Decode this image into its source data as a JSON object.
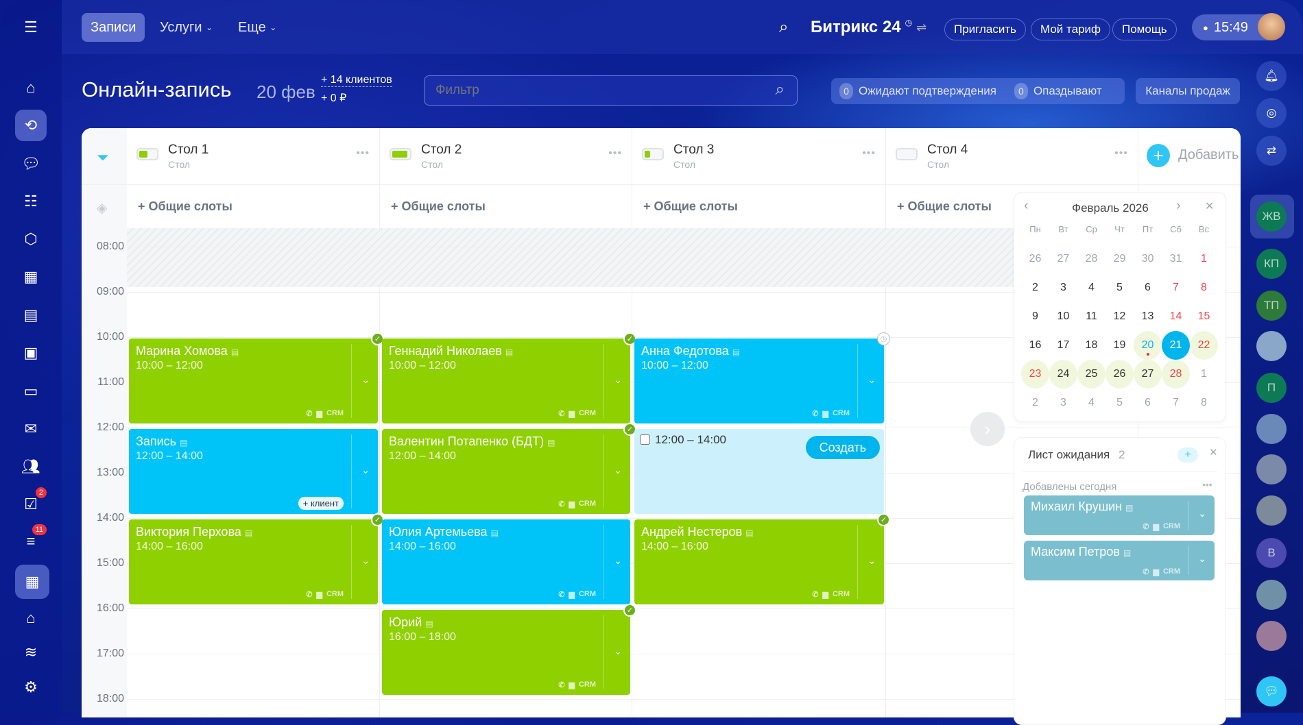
{
  "topbar": {
    "tabs": [
      "Записи",
      "Услуги",
      "Еще"
    ],
    "brand": "Битрикс 24",
    "invite": "Пригласить",
    "tariff": "Мой тариф",
    "help": "Помощь",
    "time": "15:49"
  },
  "header": {
    "title": "Онлайн-запись",
    "date": "20 фев",
    "clients": "+ 14 клиентов",
    "money": "+ 0 ₽",
    "filter_placeholder": "Фильтр",
    "pending_count": "0",
    "pending_label": "Ожидают подтверждения",
    "late_count": "0",
    "late_label": "Опаздывают",
    "channels": "Каналы продаж"
  },
  "left_sidebar": {
    "tasks_badge": "2",
    "funnel_badge": "11"
  },
  "columns": [
    {
      "name": "Стол 1",
      "type": "Стол",
      "battery": 0.5
    },
    {
      "name": "Стол 2",
      "type": "Стол",
      "battery": 0.9
    },
    {
      "name": "Стол 3",
      "type": "Стол",
      "battery": 0.35
    },
    {
      "name": "Стол 4",
      "type": "Стол",
      "battery": 0
    }
  ],
  "add_label": "Добавить",
  "shared_slots": "+ Общие слоты",
  "hours": [
    "08:00",
    "09:00",
    "10:00",
    "11:00",
    "12:00",
    "13:00",
    "14:00",
    "15:00",
    "16:00",
    "17:00",
    "18:00"
  ],
  "bookings": [
    {
      "col": 0,
      "name": "Марина Хомова",
      "time": "10:00 – 12:00",
      "start": 10,
      "end": 12,
      "color": "green",
      "status": "confirmed",
      "crm": "CRM"
    },
    {
      "col": 0,
      "name": "Запись",
      "time": "12:00 – 14:00",
      "start": 12,
      "end": 14,
      "color": "blue",
      "status": "none",
      "add_client": "+ клиент"
    },
    {
      "col": 0,
      "name": "Виктория Перхова",
      "time": "14:00 – 16:00",
      "start": 14,
      "end": 16,
      "color": "green",
      "status": "confirmed",
      "crm": "CRM"
    },
    {
      "col": 1,
      "name": "Геннадий Николаев",
      "time": "10:00 – 12:00",
      "start": 10,
      "end": 12,
      "color": "green",
      "status": "confirmed",
      "crm": "CRM"
    },
    {
      "col": 1,
      "name": "Валентин Потапенко (БДТ)",
      "time": "12:00 – 14:00",
      "start": 12,
      "end": 14,
      "color": "green",
      "status": "confirmed",
      "crm": "CRM"
    },
    {
      "col": 1,
      "name": "Юлия Артемьева",
      "time": "14:00 – 16:00",
      "start": 14,
      "end": 16,
      "color": "blue",
      "status": "none",
      "crm": "CRM"
    },
    {
      "col": 1,
      "name": "Юрий",
      "time": "16:00 – 18:00",
      "start": 16,
      "end": 18,
      "color": "green",
      "status": "confirmed",
      "crm": "CRM"
    },
    {
      "col": 2,
      "name": "Анна Федотова",
      "time": "10:00 – 12:00",
      "start": 10,
      "end": 12,
      "color": "blue",
      "status": "pending",
      "crm": "CRM"
    },
    {
      "col": 2,
      "name": "Андрей Нестеров",
      "time": "14:00 – 16:00",
      "start": 14,
      "end": 16,
      "color": "green",
      "status": "confirmed",
      "crm": "CRM"
    }
  ],
  "new_slot": {
    "col": 2,
    "start": 12,
    "end": 14,
    "time": "12:00 – 14:00",
    "create": "Создать"
  },
  "calendar": {
    "title": "Февраль 2026",
    "weekdays": [
      "Пн",
      "Вт",
      "Ср",
      "Чт",
      "Пт",
      "Сб",
      "Вс"
    ],
    "days": [
      [
        "26",
        "o"
      ],
      [
        "27",
        "o"
      ],
      [
        "28",
        "o"
      ],
      [
        "29",
        "o"
      ],
      [
        "30",
        "o"
      ],
      [
        "31",
        "o"
      ],
      [
        "1",
        "w"
      ],
      [
        "2",
        ""
      ],
      [
        "3",
        ""
      ],
      [
        "4",
        ""
      ],
      [
        "5",
        ""
      ],
      [
        "6",
        ""
      ],
      [
        "7",
        "w"
      ],
      [
        "8",
        "w"
      ],
      [
        "9",
        ""
      ],
      [
        "10",
        ""
      ],
      [
        "11",
        ""
      ],
      [
        "12",
        ""
      ],
      [
        "13",
        ""
      ],
      [
        "14",
        "w"
      ],
      [
        "15",
        "w"
      ],
      [
        "16",
        ""
      ],
      [
        "17",
        ""
      ],
      [
        "18",
        ""
      ],
      [
        "19",
        ""
      ],
      [
        "20",
        "h today"
      ],
      [
        "21",
        "sel"
      ],
      [
        "22",
        "h w"
      ],
      [
        "23",
        "h w"
      ],
      [
        "24",
        "h"
      ],
      [
        "25",
        "h"
      ],
      [
        "26",
        "h"
      ],
      [
        "27",
        "h"
      ],
      [
        "28",
        "h w"
      ],
      [
        "1",
        "o"
      ],
      [
        "2",
        "o"
      ],
      [
        "3",
        "o"
      ],
      [
        "4",
        "o"
      ],
      [
        "5",
        "o"
      ],
      [
        "6",
        "o"
      ],
      [
        "7",
        "o"
      ],
      [
        "8",
        "o"
      ]
    ]
  },
  "waitlist": {
    "title": "Лист ожидания",
    "count": "2",
    "section": "Добавлены сегодня",
    "items": [
      {
        "name": "Михаил Крушин",
        "crm": "CRM"
      },
      {
        "name": "Максим Петров",
        "crm": "CRM"
      }
    ]
  },
  "right_sidebar": {
    "avatars": [
      {
        "initials": "ЖВ",
        "color": "#0d7a55"
      },
      {
        "initials": "КП",
        "color": "#0d7a55"
      },
      {
        "initials": "ТП",
        "color": "#2d7a3a"
      },
      {
        "initials": "",
        "color": "#8aa6c8"
      },
      {
        "initials": "П",
        "color": "#0d7a55"
      },
      {
        "initials": "",
        "color": "#6a88b8"
      },
      {
        "initials": "",
        "color": "#7a8aa8"
      },
      {
        "initials": "",
        "color": "#7c8a9a"
      },
      {
        "initials": "В",
        "color": "#4a4ab0"
      },
      {
        "initials": "",
        "color": "#7090a8"
      },
      {
        "initials": "",
        "color": "#9a7a98"
      }
    ]
  }
}
